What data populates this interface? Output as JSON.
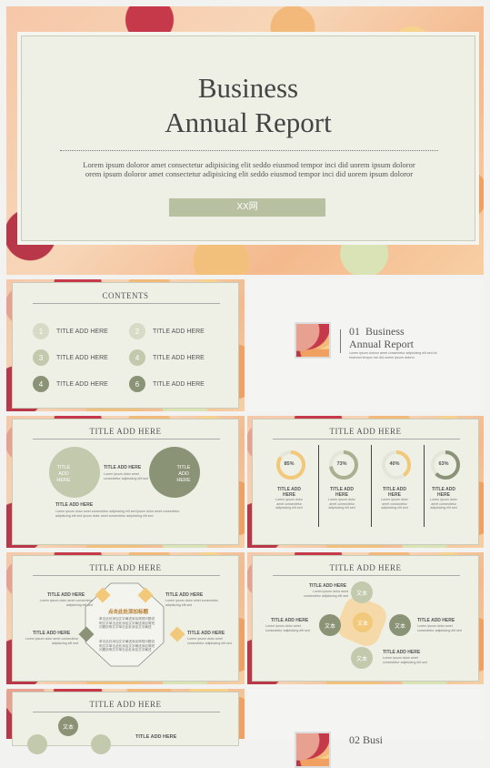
{
  "cover": {
    "title_line1": "Business",
    "title_line2": "Annual Report",
    "body": "Lorem ipsum doloror amet consectetur adipisicing elit seddo eiusmod tempor inci did uorem ipsum doloror orem ipsum doloror amet consectetur adipisicing elit seddo eiusmod tempor inci did uorem ipsum doloror",
    "button": "XX网"
  },
  "contents": {
    "title": "CONTENTS",
    "items": [
      {
        "num": "1",
        "label": "TITLE ADD HERE"
      },
      {
        "num": "2",
        "label": "TITLE ADD HERE"
      },
      {
        "num": "3",
        "label": "TITLE ADD HERE"
      },
      {
        "num": "4",
        "label": "TITLE ADD HERE"
      },
      {
        "num": "4",
        "label": "TITLE ADD HERE"
      },
      {
        "num": "6",
        "label": "TITLE ADD HERE"
      }
    ]
  },
  "section": {
    "num": "01",
    "title1": "Business",
    "title2": "Annual Report",
    "desc": "Lorem ipsum doloror amet consectetur adipisicing elit sed do eiusmod tempor inci did uorem ipsum doloror"
  },
  "slide3": {
    "title": "TITLE ADD HERE",
    "left_circle": "TITLE ADD HERE",
    "right_circle": "TITLE ADD HERE",
    "mid_title": "TITLE ADD HERE",
    "mid_text": "Lorem ipsum dolor amet consectetur adipisicing elit sed",
    "bottom_title": "TITLE ADD HERE",
    "bottom_text": "Lorem ipsum dolor amet consectetur adipisicing elit sed ipsum dolor amet consectetur adipisicing elit sed ipsum dolor amet consectetur adipisicing elit sed"
  },
  "slide4": {
    "title": "TITLE ADD HERE",
    "items": [
      {
        "pct": "85%",
        "value": 85,
        "color": "#f2c87a",
        "label": "TITLE ADD HERE",
        "text": "Lorem ipsum dolor amet consectetur adipisicing elit sed"
      },
      {
        "pct": "73%",
        "value": 73,
        "color": "#a9b08f",
        "label": "TITLE ADD HERE",
        "text": "Lorem ipsum dolor amet consectetur adipisicing elit sed"
      },
      {
        "pct": "40%",
        "value": 40,
        "color": "#f2c87a",
        "label": "TITLE ADD HERE",
        "text": "Lorem ipsum dolor amet consectetur adipisicing elit sed"
      },
      {
        "pct": "63%",
        "value": 63,
        "color": "#8b9376",
        "label": "TITLE ADD HERE",
        "text": "Lorem ipsum dolor amet consectetur adipisicing elit sed"
      }
    ]
  },
  "slide5": {
    "title": "TITLE ADD HERE",
    "center_title": "点击此处添加标题",
    "center_text": "单击此处添加文字阐述添加简短问题说明文字单击此处添加文字阐述添加简短问题说明文字单击此处添加文字阐述",
    "center_text2": "单击此处添加文字阐述添加简短问题说明文字单击此处添加文字阐述添加简短问题说明文字单击此处添加文字阐述",
    "tl_title": "TITLE ADD HERE",
    "tr_title": "TITLE ADD HERE",
    "bl_title": "TITLE ADD HERE",
    "br_title": "TITLE ADD HERE",
    "text": "Lorem ipsum dolor amet consectetur adipisicing elit sed"
  },
  "slide6": {
    "title": "TITLE ADD HERE",
    "nodes": [
      "文本",
      "文本",
      "文本",
      "文本",
      "文本"
    ],
    "t1": "TITLE ADD HERE",
    "t2": "TITLE ADD HERE",
    "t3": "TITLE ADD HERE",
    "t4": "TITLE ADD HERE",
    "text": "Lorem ipsum dolor amet consectetur adipisicing elit sed"
  },
  "slide7": {
    "title": "TITLE ADD HERE",
    "node": "文本",
    "side_title": "TITLE ADD HERE"
  },
  "section2": {
    "num": "02",
    "title1": "Busi"
  }
}
